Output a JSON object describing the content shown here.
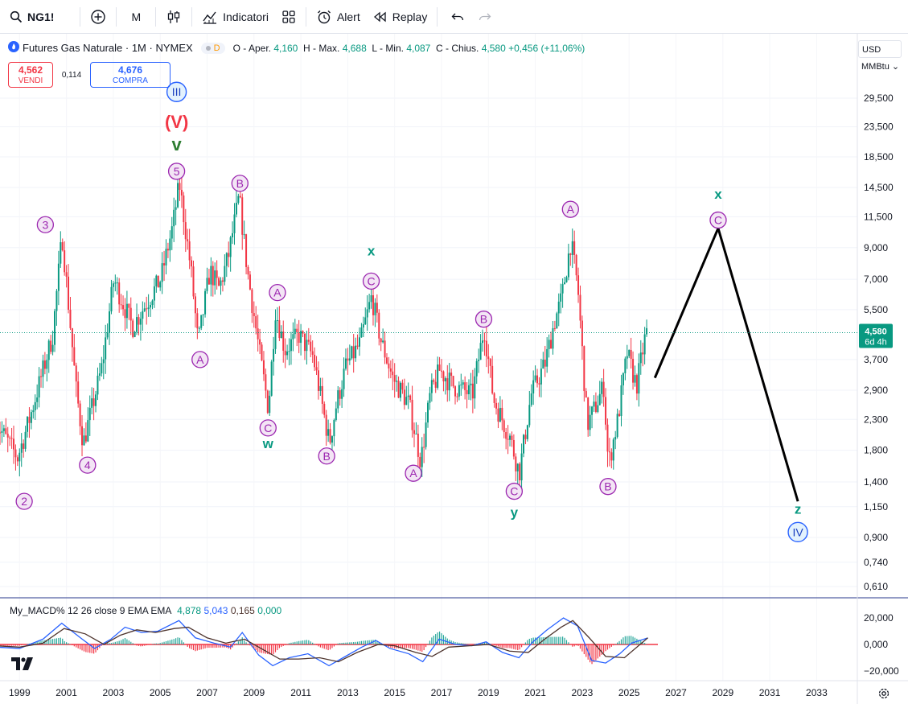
{
  "toolbar": {
    "symbol": "NG1!",
    "interval": "M",
    "indicators_label": "Indicatori",
    "alert_label": "Alert",
    "replay_label": "Replay"
  },
  "legend": {
    "title": "Futures Gas Naturale · 1M · NYMEX",
    "badge": "D",
    "open_label": "O - Aper.",
    "open": "4,160",
    "high_label": "H - Max.",
    "high": "4,688",
    "low_label": "L - Min.",
    "low": "4,087",
    "close_label": "C - Chius.",
    "close": "4,580",
    "change": "+0,456 (+11,06%)"
  },
  "trade": {
    "sell_price": "4,562",
    "sell_label": "VENDI",
    "spread": "0,114",
    "buy_price": "4,676",
    "buy_label": "COMPRA"
  },
  "scale_controls": {
    "currency": "USD",
    "unit": "MMBtu"
  },
  "price_tag": {
    "price": "4,580",
    "countdown": "6d 4h"
  },
  "macd": {
    "name": "My_MACD% 12 26 close 9 EMA EMA",
    "v1": "4,878",
    "v2": "5,043",
    "v3": "0,165",
    "v4": "0,000",
    "axis": [
      "20,000",
      "0,000",
      "−20,000"
    ]
  },
  "colors": {
    "up": "#089981",
    "down": "#f23645",
    "wave_purple": "#9c27b0",
    "wave_teal": "#089981",
    "wave_blue": "#2962ff",
    "macd_line": "#2962ff",
    "signal_line": "#4e342e"
  },
  "chart_data": {
    "type": "candlestick",
    "title": "Futures Gas Naturale · 1M · NYMEX",
    "scale": "log",
    "y_ticks": [
      "29,500",
      "23,500",
      "18,500",
      "14,500",
      "11,500",
      "9,000",
      "7,000",
      "5,500",
      "3,700",
      "2,900",
      "2,300",
      "1,800",
      "1,400",
      "1,150",
      "0,900",
      "0,740",
      "0,610"
    ],
    "y_tick_values": [
      29.5,
      23.5,
      18.5,
      14.5,
      11.5,
      9.0,
      7.0,
      5.5,
      3.7,
      2.9,
      2.3,
      1.8,
      1.4,
      1.15,
      0.9,
      0.74,
      0.61
    ],
    "x_ticks": [
      "1999",
      "2001",
      "2003",
      "2005",
      "2007",
      "2009",
      "2011",
      "2013",
      "2015",
      "2017",
      "2019",
      "2021",
      "2023",
      "2025",
      "2027",
      "2029",
      "2031",
      "2033"
    ],
    "x_tick_years": [
      1999,
      2001,
      2003,
      2005,
      2007,
      2009,
      2011,
      2013,
      2015,
      2017,
      2019,
      2021,
      2023,
      2025,
      2027,
      2029,
      2031,
      2033
    ],
    "last_price": 4.58,
    "price_path": [
      [
        1998.0,
        2.3
      ],
      [
        1999.0,
        1.7
      ],
      [
        1999.5,
        2.3
      ],
      [
        2000.5,
        4.5
      ],
      [
        2000.9,
        10.0
      ],
      [
        2001.5,
        2.9
      ],
      [
        2001.8,
        1.9
      ],
      [
        2002.6,
        3.5
      ],
      [
        2003.1,
        7.0
      ],
      [
        2003.9,
        4.8
      ],
      [
        2004.6,
        6.0
      ],
      [
        2005.1,
        7.0
      ],
      [
        2005.6,
        10.5
      ],
      [
        2005.9,
        15.0
      ],
      [
        2006.4,
        7.5
      ],
      [
        2006.7,
        4.2
      ],
      [
        2007.2,
        7.5
      ],
      [
        2007.6,
        6.5
      ],
      [
        2008.0,
        8.5
      ],
      [
        2008.45,
        13.5
      ],
      [
        2008.8,
        7.5
      ],
      [
        2009.3,
        4.0
      ],
      [
        2009.7,
        2.5
      ],
      [
        2010.0,
        5.5
      ],
      [
        2010.4,
        4.0
      ],
      [
        2011.0,
        4.5
      ],
      [
        2011.6,
        3.8
      ],
      [
        2012.3,
        1.9
      ],
      [
        2012.6,
        2.6
      ],
      [
        2013.0,
        3.5
      ],
      [
        2013.6,
        4.2
      ],
      [
        2014.1,
        6.1
      ],
      [
        2014.5,
        4.3
      ],
      [
        2015.0,
        3.2
      ],
      [
        2015.7,
        2.6
      ],
      [
        2016.2,
        1.65
      ],
      [
        2016.6,
        2.8
      ],
      [
        2017.0,
        3.4
      ],
      [
        2017.6,
        3.0
      ],
      [
        2018.4,
        2.8
      ],
      [
        2018.9,
        4.8
      ],
      [
        2019.3,
        2.7
      ],
      [
        2020.0,
        2.0
      ],
      [
        2020.4,
        1.5
      ],
      [
        2020.9,
        2.8
      ],
      [
        2021.5,
        3.6
      ],
      [
        2021.9,
        5.0
      ],
      [
        2022.2,
        6.0
      ],
      [
        2022.6,
        9.5
      ],
      [
        2022.9,
        6.5
      ],
      [
        2023.3,
        2.2
      ],
      [
        2023.6,
        2.5
      ],
      [
        2024.0,
        3.0
      ],
      [
        2024.2,
        1.6
      ],
      [
        2024.6,
        2.3
      ],
      [
        2025.0,
        3.9
      ],
      [
        2025.4,
        3.0
      ],
      [
        2025.8,
        4.58
      ]
    ],
    "projection": [
      [
        2026.1,
        3.2
      ],
      [
        2028.8,
        10.5
      ],
      [
        2032.2,
        1.2
      ]
    ],
    "wave_labels": [
      {
        "text": "III",
        "year": 2005.7,
        "price": 31.0,
        "style": "circle-blue"
      },
      {
        "text": "(V)",
        "year": 2005.7,
        "price": 24.5,
        "style": "red"
      },
      {
        "text": "v",
        "year": 2005.7,
        "price": 20.5,
        "style": "green"
      },
      {
        "text": "5",
        "year": 2005.7,
        "price": 16.5,
        "style": "circle-purple"
      },
      {
        "text": "3",
        "year": 2000.1,
        "price": 10.8,
        "style": "circle-purple"
      },
      {
        "text": "B",
        "year": 2008.4,
        "price": 15.0,
        "style": "circle-purple"
      },
      {
        "text": "4",
        "year": 2001.9,
        "price": 1.6,
        "style": "circle-purple"
      },
      {
        "text": "2",
        "year": 1999.2,
        "price": 1.2,
        "style": "circle-purple"
      },
      {
        "text": "A",
        "year": 2006.7,
        "price": 3.7,
        "style": "circle-purple"
      },
      {
        "text": "A",
        "year": 2010.0,
        "price": 6.3,
        "style": "circle-purple"
      },
      {
        "text": "C",
        "year": 2009.6,
        "price": 2.15,
        "style": "circle-purple"
      },
      {
        "text": "w",
        "year": 2009.6,
        "price": 1.9,
        "style": "teal"
      },
      {
        "text": "B",
        "year": 2012.1,
        "price": 1.72,
        "style": "circle-purple"
      },
      {
        "text": "x",
        "year": 2014.0,
        "price": 8.8,
        "style": "teal"
      },
      {
        "text": "C",
        "year": 2014.0,
        "price": 6.9,
        "style": "circle-purple"
      },
      {
        "text": "A",
        "year": 2015.8,
        "price": 1.5,
        "style": "circle-purple"
      },
      {
        "text": "B",
        "year": 2018.8,
        "price": 5.1,
        "style": "circle-purple"
      },
      {
        "text": "C",
        "year": 2020.1,
        "price": 1.3,
        "style": "circle-purple"
      },
      {
        "text": "y",
        "year": 2020.1,
        "price": 1.1,
        "style": "teal"
      },
      {
        "text": "A",
        "year": 2022.5,
        "price": 12.2,
        "style": "circle-purple"
      },
      {
        "text": "B",
        "year": 2024.1,
        "price": 1.35,
        "style": "circle-purple"
      },
      {
        "text": "x",
        "year": 2028.8,
        "price": 13.8,
        "style": "teal"
      },
      {
        "text": "C",
        "year": 2028.8,
        "price": 11.2,
        "style": "circle-purple"
      },
      {
        "text": "z",
        "year": 2032.2,
        "price": 1.13,
        "style": "teal"
      },
      {
        "text": "IV",
        "year": 2032.2,
        "price": 0.94,
        "style": "circle-blue"
      }
    ],
    "macd_series": [
      [
        1998.0,
        -2
      ],
      [
        1999.0,
        -3
      ],
      [
        2000.0,
        4
      ],
      [
        2000.8,
        16
      ],
      [
        2001.6,
        5
      ],
      [
        2002.2,
        -3
      ],
      [
        2002.9,
        4
      ],
      [
        2003.5,
        13
      ],
      [
        2004.2,
        9
      ],
      [
        2004.9,
        10
      ],
      [
        2005.8,
        18
      ],
      [
        2006.5,
        5
      ],
      [
        2007.3,
        1
      ],
      [
        2008.0,
        -2
      ],
      [
        2008.5,
        9
      ],
      [
        2009.2,
        -8
      ],
      [
        2009.8,
        -16
      ],
      [
        2010.5,
        -10
      ],
      [
        2011.3,
        -7
      ],
      [
        2012.2,
        -16
      ],
      [
        2012.8,
        -10
      ],
      [
        2013.6,
        -2
      ],
      [
        2014.2,
        3
      ],
      [
        2014.8,
        -3
      ],
      [
        2015.6,
        -7
      ],
      [
        2016.2,
        -13
      ],
      [
        2016.9,
        4
      ],
      [
        2017.6,
        0
      ],
      [
        2018.3,
        -1
      ],
      [
        2018.9,
        2
      ],
      [
        2019.6,
        -6
      ],
      [
        2020.3,
        -10
      ],
      [
        2020.9,
        2
      ],
      [
        2021.5,
        11
      ],
      [
        2022.2,
        20
      ],
      [
        2022.8,
        14
      ],
      [
        2023.4,
        -12
      ],
      [
        2024.0,
        -14
      ],
      [
        2024.6,
        -7
      ],
      [
        2025.1,
        1
      ],
      [
        2025.8,
        4.9
      ]
    ],
    "signal_series": [
      [
        1998.0,
        -1
      ],
      [
        1999.0,
        -2
      ],
      [
        2000.0,
        1
      ],
      [
        2000.9,
        12
      ],
      [
        2001.8,
        8
      ],
      [
        2002.6,
        0
      ],
      [
        2003.3,
        7
      ],
      [
        2004.0,
        11
      ],
      [
        2004.8,
        9
      ],
      [
        2005.6,
        12
      ],
      [
        2006.2,
        13
      ],
      [
        2007.0,
        5
      ],
      [
        2007.8,
        1
      ],
      [
        2008.6,
        4
      ],
      [
        2009.4,
        -4
      ],
      [
        2010.1,
        -11
      ],
      [
        2010.9,
        -11
      ],
      [
        2011.8,
        -10
      ],
      [
        2012.6,
        -13
      ],
      [
        2013.4,
        -6
      ],
      [
        2014.3,
        0
      ],
      [
        2015.0,
        -1
      ],
      [
        2015.9,
        -6
      ],
      [
        2016.6,
        -9
      ],
      [
        2017.3,
        -2
      ],
      [
        2018.2,
        -1
      ],
      [
        2019.0,
        0
      ],
      [
        2019.9,
        -5
      ],
      [
        2020.7,
        -6
      ],
      [
        2021.4,
        4
      ],
      [
        2022.1,
        13
      ],
      [
        2022.6,
        18
      ],
      [
        2023.3,
        5
      ],
      [
        2024.0,
        -9
      ],
      [
        2024.8,
        -10
      ],
      [
        2025.8,
        5.0
      ]
    ]
  }
}
